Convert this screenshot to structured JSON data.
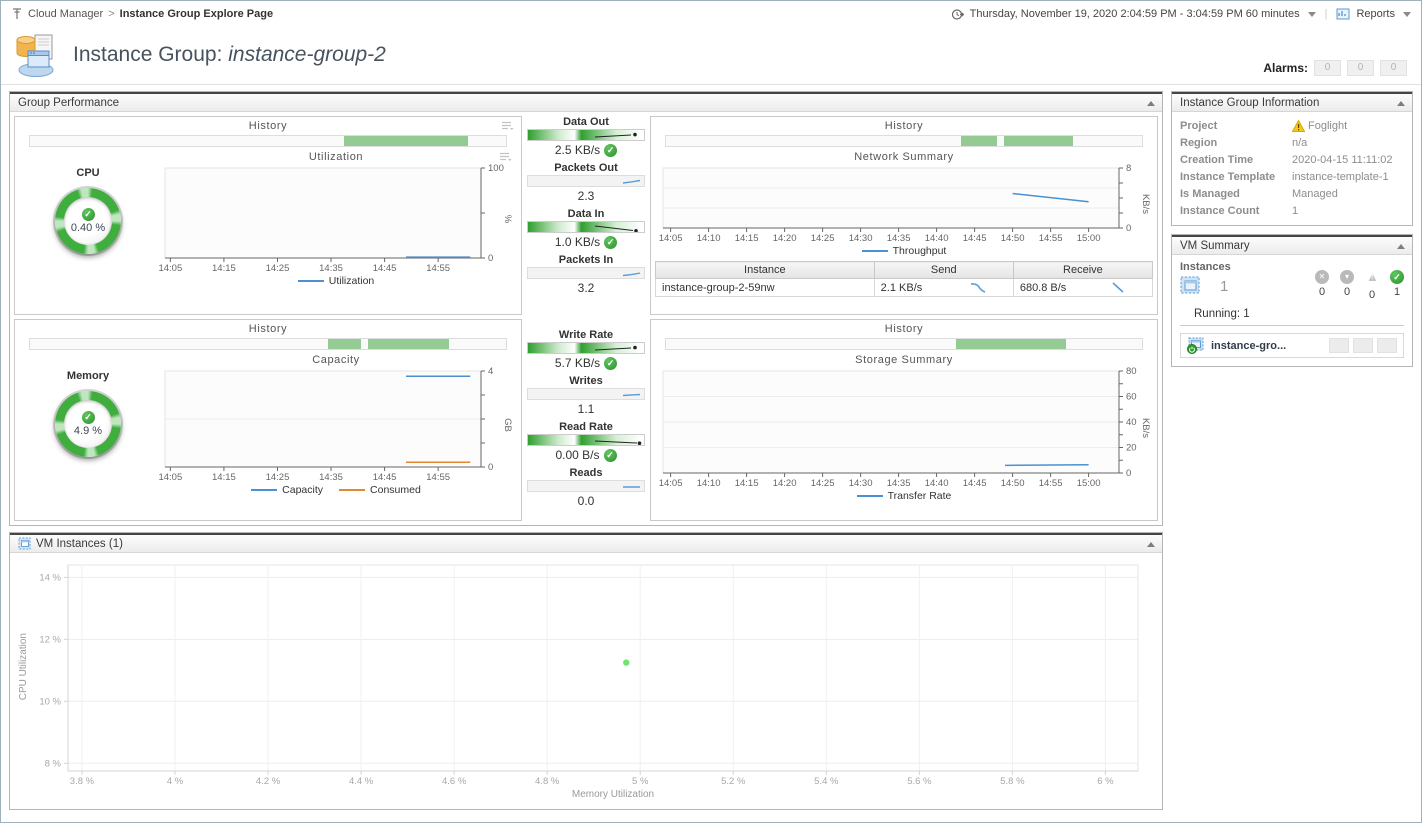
{
  "breadcrumb": {
    "root": "Cloud Manager",
    "sep": ">",
    "current": "Instance Group Explore Page"
  },
  "topbar": {
    "timerange": "Thursday, November 19, 2020 2:04:59 PM - 3:04:59 PM 60 minutes",
    "reports_label": "Reports"
  },
  "title": {
    "prefix": "Instance Group: ",
    "name": "instance-group-2"
  },
  "alarms": {
    "label": "Alarms:",
    "counts": [
      "0",
      "0",
      "0"
    ]
  },
  "icons": {
    "check": "✓",
    "fatal": "✕",
    "critical": "▾",
    "warning_mark": "!",
    "sep": "|"
  },
  "group_performance": {
    "header": "Group Performance",
    "cpu": {
      "label": "CPU",
      "gauge_value": "0.40 %",
      "history_title": "History",
      "chart_title": "Utilization",
      "legend": [
        "Utilization"
      ]
    },
    "memory": {
      "label": "Memory",
      "gauge_value": "4.9 %",
      "history_title": "History",
      "chart_title": "Capacity",
      "legend": [
        "Capacity",
        "Consumed"
      ]
    },
    "network": {
      "history_title": "History",
      "chart_title": "Network Summary",
      "legend": [
        "Throughput"
      ],
      "table": {
        "headers": [
          "Instance",
          "Send",
          "Receive"
        ],
        "rows": [
          {
            "instance": "instance-group-2-59nw",
            "send": "2.1 KB/s",
            "receive": "680.8 B/s"
          }
        ]
      }
    },
    "storage": {
      "history_title": "History",
      "chart_title": "Storage Summary",
      "legend": [
        "Transfer Rate"
      ]
    },
    "tiles": [
      {
        "label": "Data Out",
        "value": "2.5 KB/s"
      },
      {
        "label": "Packets Out",
        "value": "2.3"
      },
      {
        "label": "Data In",
        "value": "1.0 KB/s"
      },
      {
        "label": "Packets In",
        "value": "3.2"
      },
      {
        "label": "Write Rate",
        "value": "5.7 KB/s"
      },
      {
        "label": "Writes",
        "value": "1.1"
      },
      {
        "label": "Read Rate",
        "value": "0.00 B/s"
      },
      {
        "label": "Reads",
        "value": "0.0"
      }
    ],
    "history_segments": {
      "cpu": [
        [
          66,
          92
        ]
      ],
      "memory": [
        [
          62.5,
          69.5
        ],
        [
          71,
          88
        ]
      ],
      "network": [
        [
          62,
          69.5
        ],
        [
          71,
          85.5
        ]
      ],
      "storage": [
        [
          61,
          84
        ]
      ]
    }
  },
  "sidebar": {
    "info": {
      "header": "Instance Group Information",
      "rows": [
        {
          "label": "Project",
          "value": "Foglight"
        },
        {
          "label": "Region",
          "value": "n/a"
        },
        {
          "label": "Creation Time",
          "value": "2020-04-15 11:11:02"
        },
        {
          "label": "Instance Template",
          "value": "instance-template-1"
        },
        {
          "label": "Is Managed",
          "value": "Managed"
        },
        {
          "label": "Instance Count",
          "value": "1"
        }
      ]
    },
    "vm_summary": {
      "header": "VM Summary",
      "instances_label": "Instances",
      "instances_count": "1",
      "status_counts": [
        {
          "name": "fatal",
          "count": "0"
        },
        {
          "name": "critical",
          "count": "0"
        },
        {
          "name": "warning",
          "count": "0"
        },
        {
          "name": "normal",
          "count": "1"
        }
      ],
      "running": "Running: 1",
      "instance_name": "instance-gro..."
    }
  },
  "vm_instances": {
    "header": "VM Instances (1)"
  },
  "chart_data": {
    "cpu_utilization": {
      "type": "line",
      "title": "Utilization",
      "unit": "%",
      "y_side": "right",
      "xlim": [
        "14:04",
        "15:03"
      ],
      "ylim": [
        0,
        100
      ],
      "x_ticks": [
        {
          "v": "14:05",
          "label": "14:05"
        },
        {
          "v": "14:15",
          "label": "14:15"
        },
        {
          "v": "14:25",
          "label": "14:25"
        },
        {
          "v": "14:35",
          "label": "14:35"
        },
        {
          "v": "14:45",
          "label": "14:45"
        },
        {
          "v": "14:55",
          "label": "14:55"
        }
      ],
      "y_ticks": [
        {
          "v": 0,
          "label": "0"
        },
        {
          "v": 50,
          "label": ""
        },
        {
          "v": 100,
          "label": "100"
        }
      ],
      "series": [
        {
          "name": "Utilization",
          "color": "#4a90d2",
          "points": [
            [
              "14:49",
              1
            ],
            [
              "15:01",
              1
            ]
          ]
        }
      ]
    },
    "memory_capacity": {
      "type": "line",
      "title": "Capacity",
      "unit": "GB",
      "y_side": "right",
      "xlim": [
        "14:04",
        "15:03"
      ],
      "ylim": [
        0,
        4
      ],
      "grid_y": [
        2
      ],
      "x_ticks": [
        {
          "v": "14:05",
          "label": "14:05"
        },
        {
          "v": "14:15",
          "label": "14:15"
        },
        {
          "v": "14:25",
          "label": "14:25"
        },
        {
          "v": "14:35",
          "label": "14:35"
        },
        {
          "v": "14:45",
          "label": "14:45"
        },
        {
          "v": "14:55",
          "label": "14:55"
        }
      ],
      "y_ticks": [
        {
          "v": 0,
          "label": "0"
        },
        {
          "v": 1,
          "label": ""
        },
        {
          "v": 2,
          "label": ""
        },
        {
          "v": 3,
          "label": ""
        },
        {
          "v": 4,
          "label": "4"
        }
      ],
      "series": [
        {
          "name": "Capacity",
          "color": "#4a90d2",
          "points": [
            [
              "14:49",
              3.78
            ],
            [
              "15:01",
              3.78
            ]
          ]
        },
        {
          "name": "Consumed",
          "color": "#e2882e",
          "points": [
            [
              "14:49",
              0.2
            ],
            [
              "15:01",
              0.2
            ]
          ]
        }
      ]
    },
    "network_summary": {
      "type": "line",
      "title": "Network Summary",
      "unit": "KB/s",
      "y_side": "right",
      "xlim": [
        "14:04",
        "15:04"
      ],
      "ylim": [
        0,
        8
      ],
      "grid_y": [
        2.67,
        5.33
      ],
      "x_ticks": [
        {
          "v": "14:05",
          "label": "14:05"
        },
        {
          "v": "14:10",
          "label": "14:10"
        },
        {
          "v": "14:15",
          "label": "14:15"
        },
        {
          "v": "14:20",
          "label": "14:20"
        },
        {
          "v": "14:25",
          "label": "14:25"
        },
        {
          "v": "14:30",
          "label": "14:30"
        },
        {
          "v": "14:35",
          "label": "14:35"
        },
        {
          "v": "14:40",
          "label": "14:40"
        },
        {
          "v": "14:45",
          "label": "14:45"
        },
        {
          "v": "14:50",
          "label": "14:50"
        },
        {
          "v": "14:55",
          "label": "14:55"
        },
        {
          "v": "15:00",
          "label": "15:00"
        }
      ],
      "y_ticks": [
        {
          "v": 0,
          "label": "0"
        },
        {
          "v": 2,
          "label": ""
        },
        {
          "v": 4,
          "label": ""
        },
        {
          "v": 6,
          "label": ""
        },
        {
          "v": 8,
          "label": "8"
        }
      ],
      "series": [
        {
          "name": "Throughput",
          "color": "#4a90d2",
          "points": [
            [
              "14:50",
              4.6
            ],
            [
              "15:00",
              3.5
            ]
          ]
        }
      ]
    },
    "storage_summary": {
      "type": "line",
      "title": "Storage Summary",
      "unit": "KB/s",
      "y_side": "right",
      "xlim": [
        "14:04",
        "15:04"
      ],
      "ylim": [
        0,
        80
      ],
      "grid_y": [
        20,
        40,
        60
      ],
      "x_ticks": [
        {
          "v": "14:05",
          "label": "14:05"
        },
        {
          "v": "14:10",
          "label": "14:10"
        },
        {
          "v": "14:15",
          "label": "14:15"
        },
        {
          "v": "14:20",
          "label": "14:20"
        },
        {
          "v": "14:25",
          "label": "14:25"
        },
        {
          "v": "14:30",
          "label": "14:30"
        },
        {
          "v": "14:35",
          "label": "14:35"
        },
        {
          "v": "14:40",
          "label": "14:40"
        },
        {
          "v": "14:45",
          "label": "14:45"
        },
        {
          "v": "14:50",
          "label": "14:50"
        },
        {
          "v": "14:55",
          "label": "14:55"
        },
        {
          "v": "15:00",
          "label": "15:00"
        }
      ],
      "y_ticks": [
        {
          "v": 0,
          "label": "0"
        },
        {
          "v": 10,
          "label": ""
        },
        {
          "v": 20,
          "label": "20"
        },
        {
          "v": 30,
          "label": ""
        },
        {
          "v": 40,
          "label": "40"
        },
        {
          "v": 50,
          "label": ""
        },
        {
          "v": 60,
          "label": "60"
        },
        {
          "v": 70,
          "label": ""
        },
        {
          "v": 80,
          "label": "80"
        }
      ],
      "series": [
        {
          "name": "Transfer Rate",
          "color": "#4a90d2",
          "points": [
            [
              "14:49",
              6
            ],
            [
              "15:00",
              6.5
            ]
          ]
        }
      ]
    },
    "vm_scatter": {
      "type": "scatter",
      "xlabel": "Memory Utilization",
      "ylabel": "CPU Utilization",
      "y_side": "left",
      "axis_color": "#d4d4d4",
      "label_color": "#a8a8a8",
      "bg": "#ffffff",
      "xlim": [
        3.77,
        6.07
      ],
      "ylim": [
        7.75,
        14.4
      ],
      "grid_x": [
        3.8,
        4.0,
        4.2,
        4.4,
        4.6,
        4.8,
        5.0,
        5.2,
        5.4,
        5.6,
        5.8,
        6.0
      ],
      "grid_y": [
        8,
        10,
        12,
        14
      ],
      "x_ticks": [
        {
          "v": 3.8,
          "label": "3.8 %"
        },
        {
          "v": 4.0,
          "label": "4 %"
        },
        {
          "v": 4.2,
          "label": "4.2 %"
        },
        {
          "v": 4.4,
          "label": "4.4 %"
        },
        {
          "v": 4.6,
          "label": "4.6 %"
        },
        {
          "v": 4.8,
          "label": "4.8 %"
        },
        {
          "v": 5.0,
          "label": "5 %"
        },
        {
          "v": 5.2,
          "label": "5.2 %"
        },
        {
          "v": 5.4,
          "label": "5.4 %"
        },
        {
          "v": 5.6,
          "label": "5.6 %"
        },
        {
          "v": 5.8,
          "label": "5.8 %"
        },
        {
          "v": 6.0,
          "label": "6 %"
        }
      ],
      "y_ticks": [
        {
          "v": 8,
          "label": "8 %"
        },
        {
          "v": 10,
          "label": "10 %"
        },
        {
          "v": 12,
          "label": "12 %"
        },
        {
          "v": 14,
          "label": "14 %"
        }
      ],
      "series": [
        {
          "name": "instance-group-2-59nw",
          "color": "#76e176",
          "points": [
            [
              4.97,
              11.25
            ]
          ]
        }
      ]
    }
  }
}
